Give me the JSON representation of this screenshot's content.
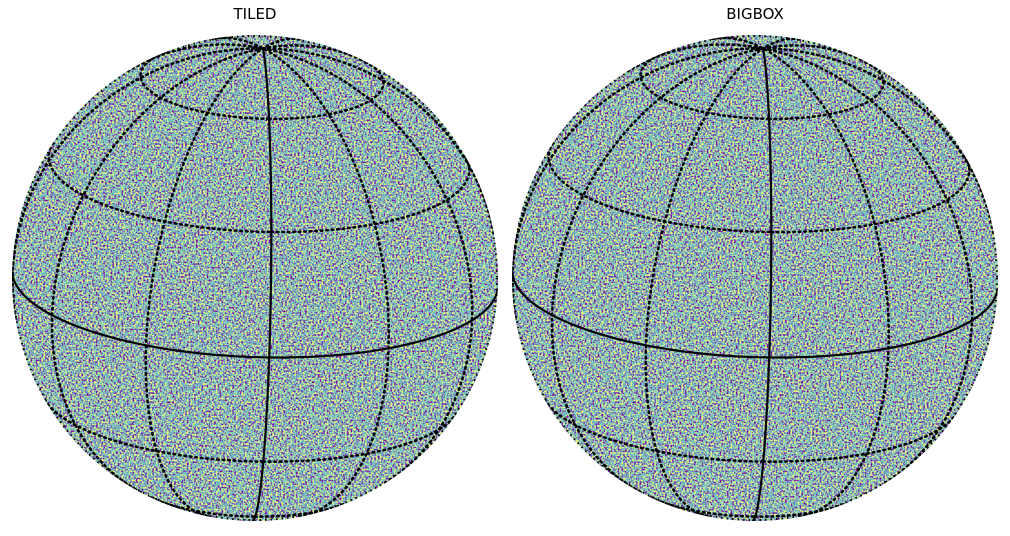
{
  "panels": [
    {
      "title": "TILED"
    },
    {
      "title": "BIGBOX"
    }
  ]
}
